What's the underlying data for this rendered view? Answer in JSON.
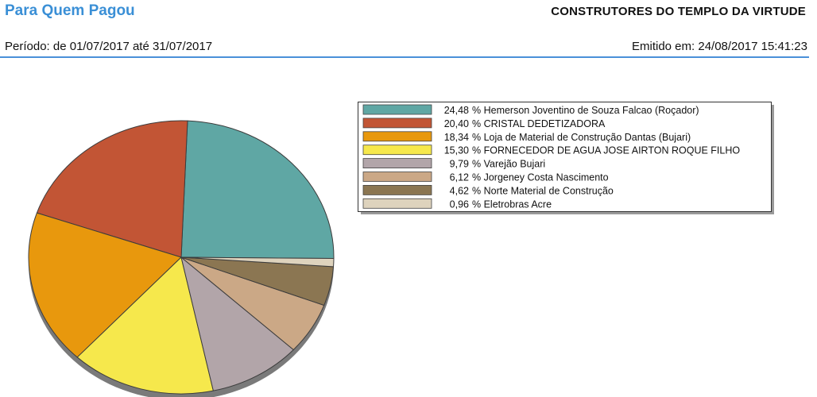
{
  "header": {
    "title": "Para Quem Pagou",
    "organization": "CONSTRUTORES DO TEMPLO DA VIRTUDE",
    "period": "Período: de 01/07/2017 até 31/07/2017",
    "issued": "Emitido em: 24/08/2017 15:41:23"
  },
  "chart_data": {
    "type": "pie",
    "legend_position": "right",
    "slices": [
      {
        "label": "24,48 % Hemerson Joventino de Souza Falcao (Roçador)",
        "value": 24.48,
        "color": "#5fa7a4"
      },
      {
        "label": "20,40 % CRISTAL DEDETIZADORA",
        "value": 20.4,
        "color": "#c25535"
      },
      {
        "label": "18,34 % Loja de Material de Construção Dantas (Bujari)",
        "value": 18.34,
        "color": "#e8980d"
      },
      {
        "label": "15,30 % FORNECEDOR DE AGUA JOSE AIRTON ROQUE FILHO",
        "value": 15.3,
        "color": "#f6e84c"
      },
      {
        "label": "9,79 % Varejão Bujari",
        "value": 9.79,
        "color": "#b2a5a9"
      },
      {
        "label": "6,12 % Jorgeney Costa Nascimento",
        "value": 6.12,
        "color": "#cba886"
      },
      {
        "label": "4,62 % Norte Material de Construção",
        "value": 4.62,
        "color": "#8b7652"
      },
      {
        "label": "0,96 % Eletrobras Acre",
        "value": 0.96,
        "color": "#ded3bd"
      }
    ]
  }
}
